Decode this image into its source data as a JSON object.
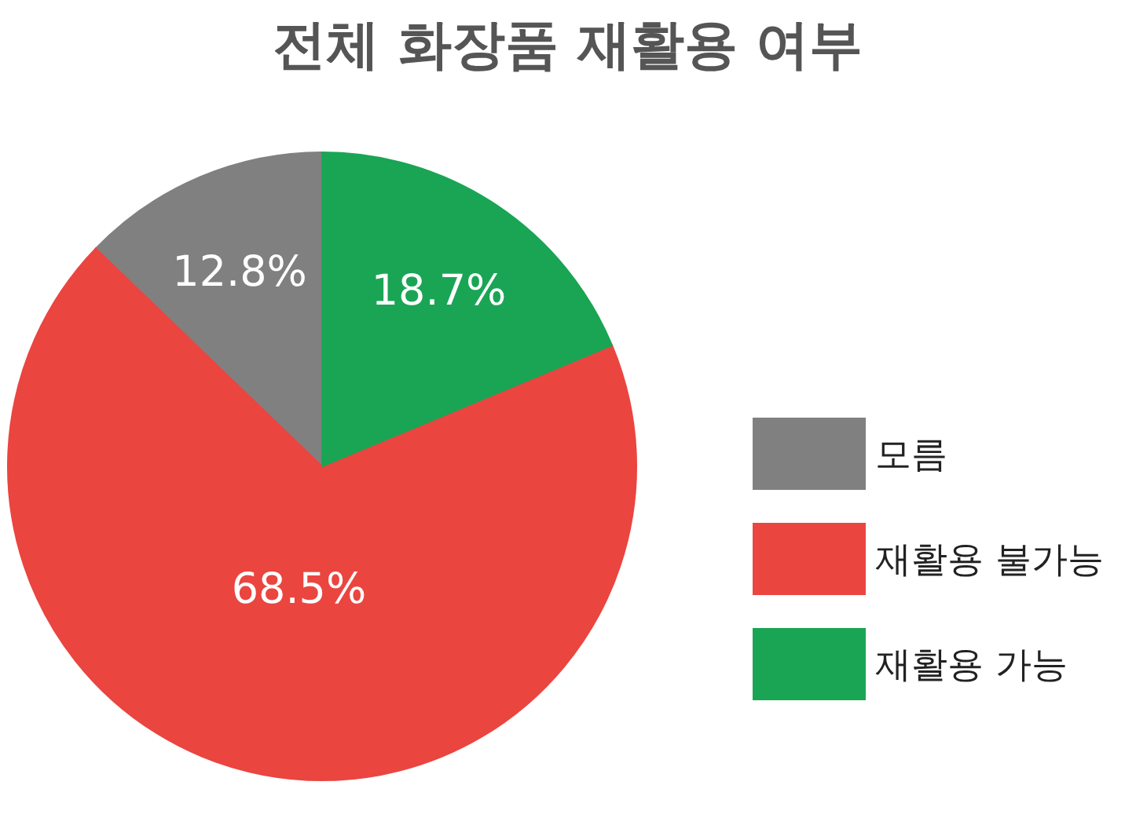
{
  "chart_data": {
    "type": "pie",
    "title": "전체 화장품 재활용 여부",
    "categories": [
      "모름",
      "재활용 불가능",
      "재활용 가능"
    ],
    "values": [
      12.8,
      68.5,
      18.7
    ],
    "colors": [
      "#808080",
      "#eb4540",
      "#1aa555"
    ],
    "value_labels": [
      "12.8%",
      "68.5%",
      "18.7%"
    ],
    "legend": "right"
  }
}
